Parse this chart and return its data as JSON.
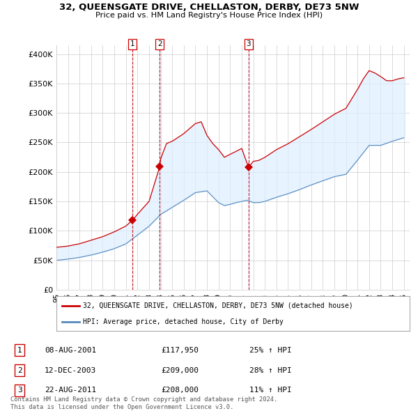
{
  "title": "32, QUEENSGATE DRIVE, CHELLASTON, DERBY, DE73 5NW",
  "subtitle": "Price paid vs. HM Land Registry's House Price Index (HPI)",
  "ylabel_ticks": [
    "£0",
    "£50K",
    "£100K",
    "£150K",
    "£200K",
    "£250K",
    "£300K",
    "£350K",
    "£400K"
  ],
  "ytick_values": [
    0,
    50000,
    100000,
    150000,
    200000,
    250000,
    300000,
    350000,
    400000
  ],
  "ylim": [
    0,
    415000
  ],
  "xlim_start": 1995.0,
  "xlim_end": 2025.5,
  "line1_color": "#cc0000",
  "line2_color": "#5588bb",
  "fill_color": "#ddeeff",
  "vline_color": "#cc0000",
  "legend1_label": "32, QUEENSGATE DRIVE, CHELLASTON, DERBY, DE73 5NW (detached house)",
  "legend2_label": "HPI: Average price, detached house, City of Derby",
  "transactions": [
    {
      "num": 1,
      "date": "08-AUG-2001",
      "price": "£117,950",
      "hpi": "25% ↑ HPI",
      "x": 2001.58
    },
    {
      "num": 2,
      "date": "12-DEC-2003",
      "price": "£209,000",
      "hpi": "28% ↑ HPI",
      "x": 2003.92
    },
    {
      "num": 3,
      "date": "22-AUG-2011",
      "price": "£208,000",
      "hpi": "11% ↑ HPI",
      "x": 2011.58
    }
  ],
  "footnote": "Contains HM Land Registry data © Crown copyright and database right 2024.\nThis data is licensed under the Open Government Licence v3.0.",
  "bg_color": "#ffffff",
  "grid_color": "#cccccc",
  "xtick_labels": [
    "95",
    "96",
    "97",
    "98",
    "99",
    "00",
    "01",
    "02",
    "03",
    "04",
    "05",
    "06",
    "07",
    "08",
    "09",
    "10",
    "11",
    "12",
    "13",
    "14",
    "15",
    "16",
    "17",
    "18",
    "19",
    "20",
    "21",
    "22",
    "23",
    "24",
    "25"
  ],
  "xtick_values": [
    1995,
    1996,
    1997,
    1998,
    1999,
    2000,
    2001,
    2002,
    2003,
    2004,
    2005,
    2006,
    2007,
    2008,
    2009,
    2010,
    2011,
    2012,
    2013,
    2014,
    2015,
    2016,
    2017,
    2018,
    2019,
    2020,
    2021,
    2022,
    2023,
    2024,
    2025
  ]
}
